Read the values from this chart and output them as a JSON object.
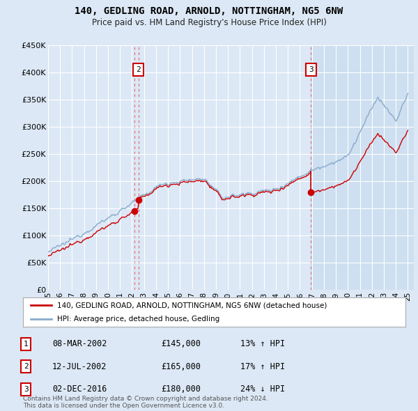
{
  "title": "140, GEDLING ROAD, ARNOLD, NOTTINGHAM, NG5 6NW",
  "subtitle": "Price paid vs. HM Land Registry's House Price Index (HPI)",
  "ylim": [
    0,
    450000
  ],
  "yticks": [
    0,
    50000,
    100000,
    150000,
    200000,
    250000,
    300000,
    350000,
    400000,
    450000
  ],
  "background_color": "#dce8f5",
  "plot_bg_color": "#dce8f5",
  "plot_bg_color_right": "#cce0f0",
  "transaction_color": "#cc0000",
  "hpi_color": "#88aacc",
  "vline_color": "#dd6666",
  "legend_label_transaction": "140, GEDLING ROAD, ARNOLD, NOTTINGHAM, NG5 6NW (detached house)",
  "legend_label_hpi": "HPI: Average price, detached house, Gedling",
  "table_entries": [
    {
      "num": 1,
      "date": "08-MAR-2002",
      "price": "£145,000",
      "change": "13% ↑ HPI"
    },
    {
      "num": 2,
      "date": "12-JUL-2002",
      "price": "£165,000",
      "change": "17% ↑ HPI"
    },
    {
      "num": 3,
      "date": "02-DEC-2016",
      "price": "£180,000",
      "change": "24% ↓ HPI"
    }
  ],
  "footer": "Contains HM Land Registry data © Crown copyright and database right 2024.\nThis data is licensed under the Open Government Licence v3.0.",
  "transactions": [
    {
      "date_num": 2002.19,
      "price": 145000,
      "label": "1"
    },
    {
      "date_num": 2002.53,
      "price": 165000,
      "label": "2"
    },
    {
      "date_num": 2016.92,
      "price": 180000,
      "label": "3"
    }
  ],
  "vlines": [
    {
      "x": 2002.19
    },
    {
      "x": 2002.53
    },
    {
      "x": 2016.92
    }
  ],
  "highlight_after": 2016.92,
  "xlim": [
    1995.0,
    2025.5
  ],
  "xticks": [
    1995,
    1996,
    1997,
    1998,
    1999,
    2000,
    2001,
    2002,
    2003,
    2004,
    2005,
    2006,
    2007,
    2008,
    2009,
    2010,
    2011,
    2012,
    2013,
    2014,
    2015,
    2016,
    2017,
    2018,
    2019,
    2020,
    2021,
    2022,
    2023,
    2024,
    2025
  ]
}
